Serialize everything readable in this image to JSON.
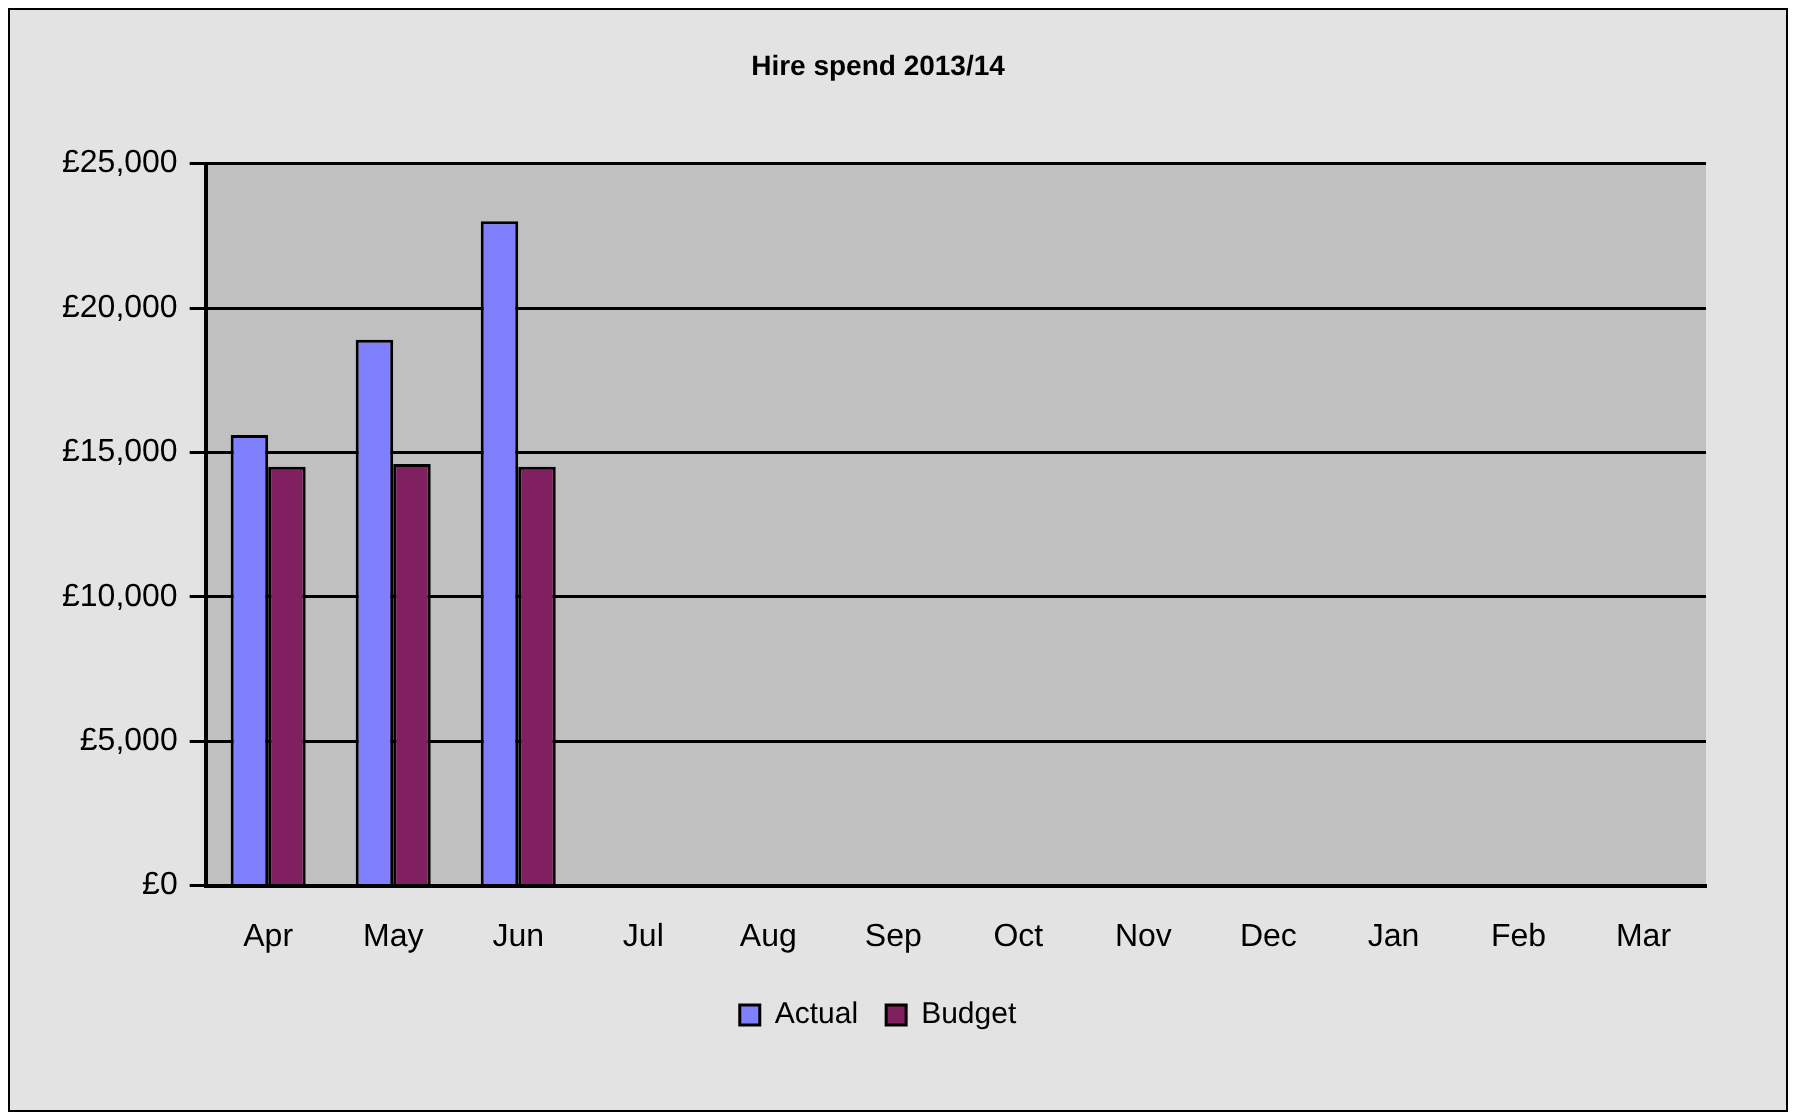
{
  "chart_data": {
    "type": "bar",
    "title": "Hire spend 2013/14",
    "categories": [
      "Apr",
      "May",
      "Jun",
      "Jul",
      "Aug",
      "Sep",
      "Oct",
      "Nov",
      "Dec",
      "Jan",
      "Feb",
      "Mar"
    ],
    "series": [
      {
        "name": "Actual",
        "color": "#8080ff",
        "values": [
          15600,
          18900,
          23000,
          null,
          null,
          null,
          null,
          null,
          null,
          null,
          null,
          null
        ]
      },
      {
        "name": "Budget",
        "color": "#802060",
        "values": [
          14500,
          14600,
          14500,
          null,
          null,
          null,
          null,
          null,
          null,
          null,
          null,
          null
        ]
      }
    ],
    "ylim": [
      0,
      25000
    ],
    "yticks": [
      {
        "value": 0,
        "label": "£0"
      },
      {
        "value": 5000,
        "label": "£5,000"
      },
      {
        "value": 10000,
        "label": "£10,000"
      },
      {
        "value": 15000,
        "label": "£15,000"
      },
      {
        "value": 20000,
        "label": "£20,000"
      },
      {
        "value": 25000,
        "label": "£25,000"
      }
    ],
    "grid": "y",
    "legend": "bottom"
  }
}
